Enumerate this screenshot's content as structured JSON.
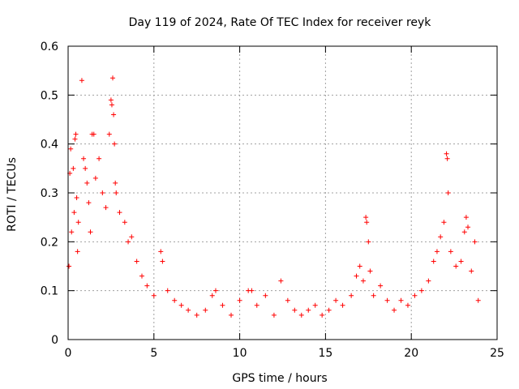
{
  "chart_data": {
    "type": "scatter",
    "title": "Day 119 of 2024, Rate Of TEC Index for receiver reyk",
    "xlabel": "GPS time / hours",
    "ylabel": "ROTI / TECUs",
    "xlim": [
      0,
      25
    ],
    "ylim": [
      0,
      0.6
    ],
    "x_ticks": [
      0,
      5,
      10,
      15,
      20,
      25
    ],
    "y_ticks": [
      0,
      0.1,
      0.2,
      0.3,
      0.4,
      0.5,
      0.6
    ],
    "x_tick_labels": [
      "0",
      "5",
      "10",
      "15",
      "20",
      "25"
    ],
    "y_tick_labels": [
      "0",
      "0.1",
      "0.2",
      "0.3",
      "0.4",
      "0.5",
      "0.6"
    ],
    "grid": true,
    "marker": "+",
    "series_color": "#ff0000",
    "series": [
      {
        "name": "ROTI",
        "points": [
          [
            0.05,
            0.15
          ],
          [
            0.1,
            0.34
          ],
          [
            0.15,
            0.39
          ],
          [
            0.2,
            0.22
          ],
          [
            0.3,
            0.35
          ],
          [
            0.35,
            0.26
          ],
          [
            0.4,
            0.41
          ],
          [
            0.45,
            0.42
          ],
          [
            0.5,
            0.29
          ],
          [
            0.55,
            0.18
          ],
          [
            0.6,
            0.24
          ],
          [
            0.8,
            0.53
          ],
          [
            0.9,
            0.37
          ],
          [
            1.0,
            0.35
          ],
          [
            1.1,
            0.32
          ],
          [
            1.2,
            0.28
          ],
          [
            1.3,
            0.22
          ],
          [
            1.4,
            0.42
          ],
          [
            1.5,
            0.42
          ],
          [
            1.6,
            0.33
          ],
          [
            1.8,
            0.37
          ],
          [
            2.0,
            0.3
          ],
          [
            2.2,
            0.27
          ],
          [
            2.4,
            0.42
          ],
          [
            2.5,
            0.49
          ],
          [
            2.55,
            0.48
          ],
          [
            2.6,
            0.535
          ],
          [
            2.65,
            0.46
          ],
          [
            2.7,
            0.4
          ],
          [
            2.75,
            0.32
          ],
          [
            2.8,
            0.3
          ],
          [
            3.0,
            0.26
          ],
          [
            3.3,
            0.24
          ],
          [
            3.5,
            0.2
          ],
          [
            3.7,
            0.21
          ],
          [
            4.0,
            0.16
          ],
          [
            4.3,
            0.13
          ],
          [
            4.6,
            0.11
          ],
          [
            5.0,
            0.09
          ],
          [
            5.4,
            0.18
          ],
          [
            5.5,
            0.16
          ],
          [
            5.8,
            0.1
          ],
          [
            6.2,
            0.08
          ],
          [
            6.6,
            0.07
          ],
          [
            7.0,
            0.06
          ],
          [
            7.5,
            0.05
          ],
          [
            8.0,
            0.06
          ],
          [
            8.4,
            0.09
          ],
          [
            8.6,
            0.1
          ],
          [
            9.0,
            0.07
          ],
          [
            9.5,
            0.05
          ],
          [
            10.0,
            0.08
          ],
          [
            10.5,
            0.1
          ],
          [
            10.7,
            0.1
          ],
          [
            11.0,
            0.07
          ],
          [
            11.5,
            0.09
          ],
          [
            12.0,
            0.05
          ],
          [
            12.4,
            0.12
          ],
          [
            12.8,
            0.08
          ],
          [
            13.2,
            0.06
          ],
          [
            13.6,
            0.05
          ],
          [
            14.0,
            0.06
          ],
          [
            14.4,
            0.07
          ],
          [
            14.8,
            0.05
          ],
          [
            15.2,
            0.06
          ],
          [
            15.6,
            0.08
          ],
          [
            16.0,
            0.07
          ],
          [
            16.5,
            0.09
          ],
          [
            16.8,
            0.13
          ],
          [
            17.0,
            0.15
          ],
          [
            17.2,
            0.12
          ],
          [
            17.35,
            0.25
          ],
          [
            17.4,
            0.24
          ],
          [
            17.5,
            0.2
          ],
          [
            17.6,
            0.14
          ],
          [
            17.8,
            0.09
          ],
          [
            18.2,
            0.11
          ],
          [
            18.6,
            0.08
          ],
          [
            19.0,
            0.06
          ],
          [
            19.4,
            0.08
          ],
          [
            19.8,
            0.07
          ],
          [
            20.2,
            0.09
          ],
          [
            20.6,
            0.1
          ],
          [
            21.0,
            0.12
          ],
          [
            21.3,
            0.16
          ],
          [
            21.5,
            0.18
          ],
          [
            21.7,
            0.21
          ],
          [
            21.9,
            0.24
          ],
          [
            22.05,
            0.38
          ],
          [
            22.1,
            0.37
          ],
          [
            22.15,
            0.3
          ],
          [
            22.3,
            0.18
          ],
          [
            22.6,
            0.15
          ],
          [
            22.9,
            0.16
          ],
          [
            23.1,
            0.22
          ],
          [
            23.2,
            0.25
          ],
          [
            23.3,
            0.23
          ],
          [
            23.5,
            0.14
          ],
          [
            23.7,
            0.2
          ],
          [
            23.9,
            0.08
          ]
        ]
      }
    ]
  }
}
